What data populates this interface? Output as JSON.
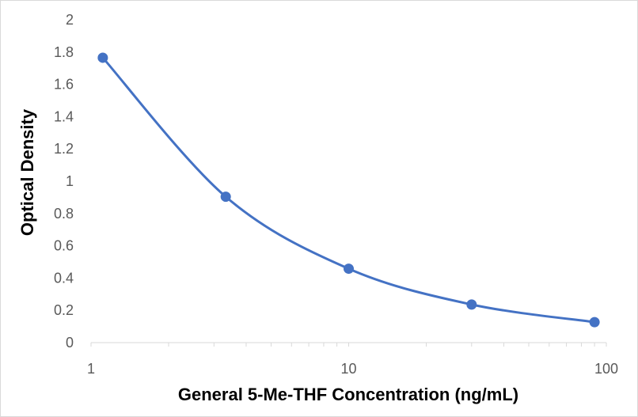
{
  "chart_data": {
    "type": "line",
    "xlabel": "General 5-Me-THF Concentration (ng/mL)",
    "ylabel": "Optical Density",
    "xscale": "log",
    "xlim": [
      1,
      100
    ],
    "ylim": [
      0,
      2
    ],
    "xticks": [
      "1",
      "10",
      "100"
    ],
    "yticks": [
      "0",
      "0.2",
      "0.4",
      "0.6",
      "0.8",
      "1",
      "1.2",
      "1.4",
      "1.6",
      "1.8",
      "2"
    ],
    "grid": false,
    "smooth": true,
    "series": [
      {
        "x": [
          1.111,
          3.333,
          10,
          30,
          90
        ],
        "y": [
          1.765,
          0.904,
          0.458,
          0.236,
          0.127
        ],
        "color": "#4472c4"
      }
    ]
  }
}
